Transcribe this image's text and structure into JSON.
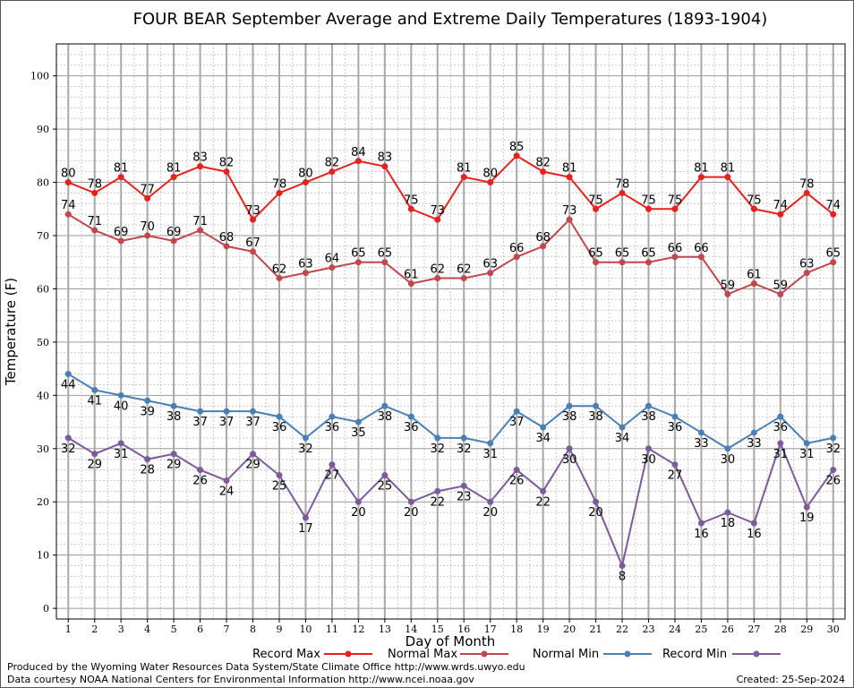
{
  "chart_data": {
    "type": "line",
    "title": "FOUR BEAR September Average and Extreme Daily Temperatures (1893-1904)",
    "xlabel": "Day of Month",
    "ylabel": "Temperature (F)",
    "x": [
      1,
      2,
      3,
      4,
      5,
      6,
      7,
      8,
      9,
      10,
      11,
      12,
      13,
      14,
      15,
      16,
      17,
      18,
      19,
      20,
      21,
      22,
      23,
      24,
      25,
      26,
      27,
      28,
      29,
      30
    ],
    "xlim": [
      0.55,
      30.45
    ],
    "ylim": [
      -2,
      106
    ],
    "yticks": [
      0,
      10,
      20,
      30,
      40,
      50,
      60,
      70,
      80,
      90,
      100
    ],
    "grid": true,
    "legend_position": "bottom",
    "series": [
      {
        "name": "Record Max",
        "color": "#e8211d",
        "label_position": "above",
        "values": [
          80,
          78,
          81,
          77,
          81,
          83,
          82,
          73,
          78,
          80,
          82,
          84,
          83,
          75,
          73,
          81,
          80,
          85,
          82,
          81,
          75,
          78,
          75,
          75,
          81,
          81,
          75,
          74,
          78,
          74
        ]
      },
      {
        "name": "Normal Max",
        "color": "#c0474e",
        "label_position": "above",
        "values": [
          74,
          71,
          69,
          70,
          69,
          71,
          68,
          67,
          62,
          63,
          64,
          65,
          65,
          61,
          62,
          62,
          63,
          66,
          68,
          73,
          65,
          65,
          65,
          66,
          66,
          59,
          61,
          59,
          63,
          65
        ]
      },
      {
        "name": "Normal Min",
        "color": "#4a7fb5",
        "label_position": "below",
        "values": [
          44,
          41,
          40,
          39,
          38,
          37,
          37,
          37,
          36,
          32,
          36,
          35,
          38,
          36,
          32,
          32,
          31,
          37,
          34,
          38,
          38,
          34,
          38,
          36,
          33,
          30,
          33,
          36,
          31,
          32
        ]
      },
      {
        "name": "Record Min",
        "color": "#7d5a9c",
        "label_position": "below",
        "values": [
          32,
          29,
          31,
          28,
          29,
          26,
          24,
          29,
          25,
          17,
          27,
          20,
          25,
          20,
          22,
          23,
          20,
          26,
          22,
          30,
          20,
          8,
          30,
          27,
          16,
          18,
          16,
          31,
          19,
          26
        ]
      }
    ]
  },
  "footer": {
    "produced_by": "Produced by the Wyoming Water Resources Data System/State Climate Office http://www.wrds.uwyo.edu",
    "courtesy": "Data courtesy NOAA National Centers for Environmental Information http://www.ncei.noaa.gov",
    "created": "Created:  25-Sep-2024"
  }
}
